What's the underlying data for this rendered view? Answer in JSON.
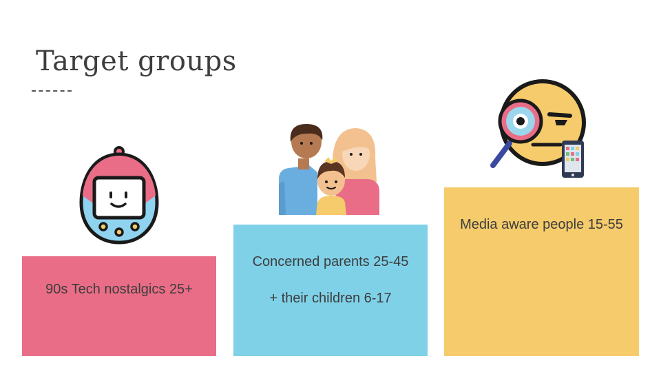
{
  "slide": {
    "title": "Target groups"
  },
  "groups": [
    {
      "label": "90s Tech nostalgics  25+",
      "color": "#e96d87",
      "icon": "tamagotchi-icon"
    },
    {
      "label_line1": "Concerned parents 25-45",
      "label_line2": "+ their children 6-17",
      "color": "#7fd1e8",
      "icon": "family-icon"
    },
    {
      "label": "Media aware people 15-55",
      "color": "#f5cb6b",
      "icon": "suspicious-emoji-magnifier-icon"
    }
  ]
}
